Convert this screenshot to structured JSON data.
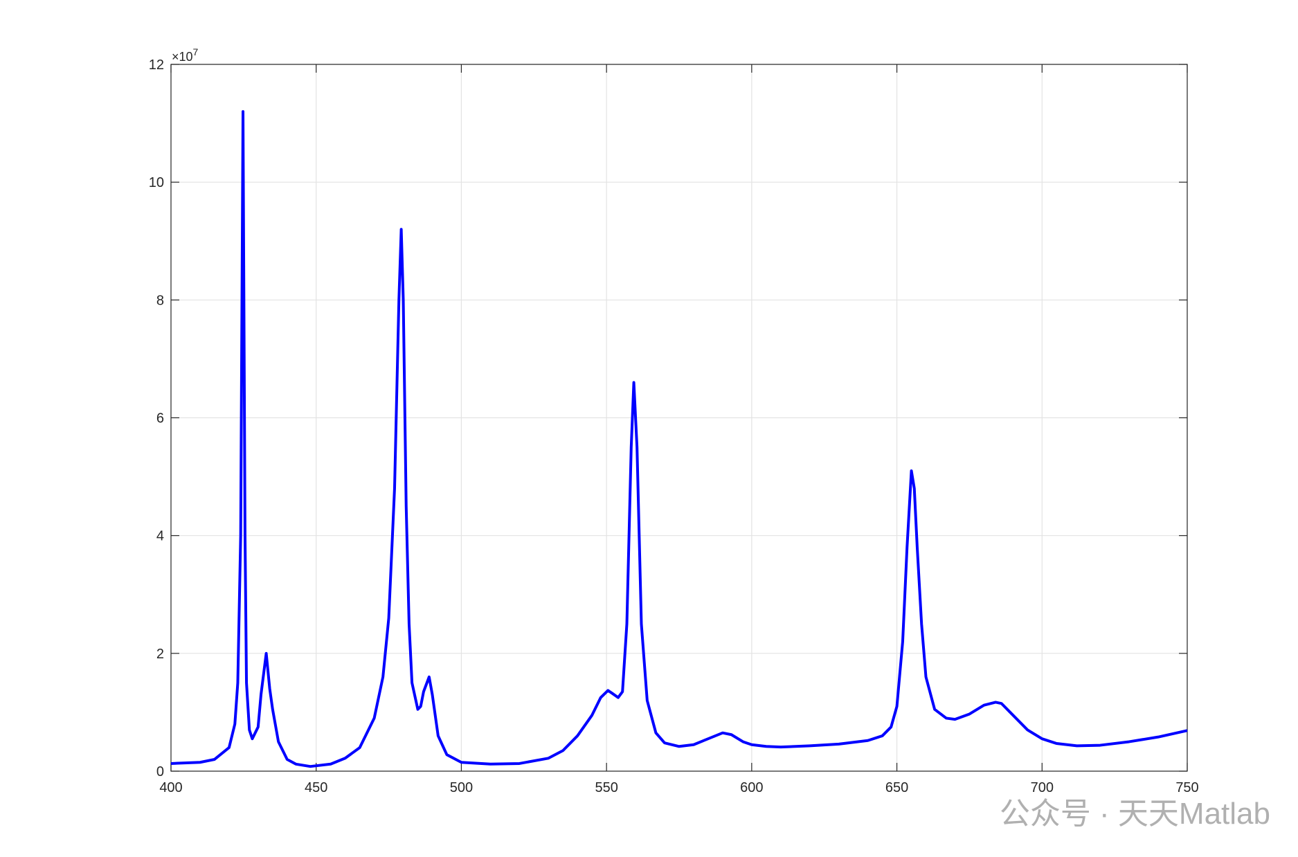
{
  "chart_data": {
    "type": "line",
    "y_multiplier": "×10",
    "y_multiplier_exponent": "7",
    "watermark": "公众号 · 天天Matlab",
    "xlim": [
      400,
      750
    ],
    "xticks": [
      400,
      450,
      500,
      550,
      600,
      650,
      700,
      750
    ],
    "ylim": [
      0,
      12
    ],
    "yticks": [
      0,
      2,
      4,
      6,
      8,
      10,
      12
    ],
    "grid": true,
    "x": [
      400,
      410,
      415,
      420,
      422,
      423,
      424,
      424.8,
      425.5,
      426,
      427,
      428,
      430,
      431,
      432.8,
      434,
      435,
      437,
      440,
      443,
      448,
      455,
      460,
      465,
      470,
      473,
      475,
      477,
      478.5,
      479.3,
      480,
      481,
      482,
      483,
      485,
      486,
      487,
      488.9,
      490,
      492,
      495,
      500,
      510,
      520,
      530,
      535,
      540,
      545,
      548,
      550.5,
      552,
      554,
      555.5,
      557,
      558.5,
      559.4,
      560.5,
      562,
      564,
      567,
      570,
      575,
      580,
      585,
      590,
      593,
      597,
      600,
      605,
      610,
      620,
      630,
      640,
      645,
      648,
      650,
      652,
      653.5,
      655,
      656,
      657,
      658.5,
      660,
      663,
      667,
      670,
      675,
      680,
      684,
      686,
      690,
      695,
      700,
      705,
      712,
      720,
      730,
      740,
      750
    ],
    "series": [
      {
        "color": "#0000ff",
        "values": [
          0.13,
          0.15,
          0.2,
          0.4,
          0.8,
          1.5,
          4,
          11.2,
          4,
          1.5,
          0.7,
          0.55,
          0.75,
          1.3,
          2.0,
          1.4,
          1.05,
          0.5,
          0.2,
          0.12,
          0.08,
          0.12,
          0.22,
          0.4,
          0.9,
          1.6,
          2.6,
          4.8,
          8,
          9.2,
          8,
          4.5,
          2.5,
          1.5,
          1.05,
          1.1,
          1.35,
          1.6,
          1.3,
          0.6,
          0.28,
          0.15,
          0.12,
          0.13,
          0.22,
          0.35,
          0.6,
          0.95,
          1.25,
          1.37,
          1.32,
          1.25,
          1.35,
          2.5,
          5.5,
          6.6,
          5.5,
          2.5,
          1.2,
          0.65,
          0.48,
          0.42,
          0.45,
          0.55,
          0.65,
          0.62,
          0.5,
          0.45,
          0.42,
          0.41,
          0.43,
          0.46,
          0.52,
          0.6,
          0.75,
          1.1,
          2.2,
          3.8,
          5.1,
          4.8,
          3.8,
          2.5,
          1.6,
          1.05,
          0.9,
          0.88,
          0.97,
          1.12,
          1.17,
          1.15,
          0.95,
          0.7,
          0.55,
          0.47,
          0.43,
          0.44,
          0.5,
          0.58,
          0.69
        ]
      }
    ]
  }
}
